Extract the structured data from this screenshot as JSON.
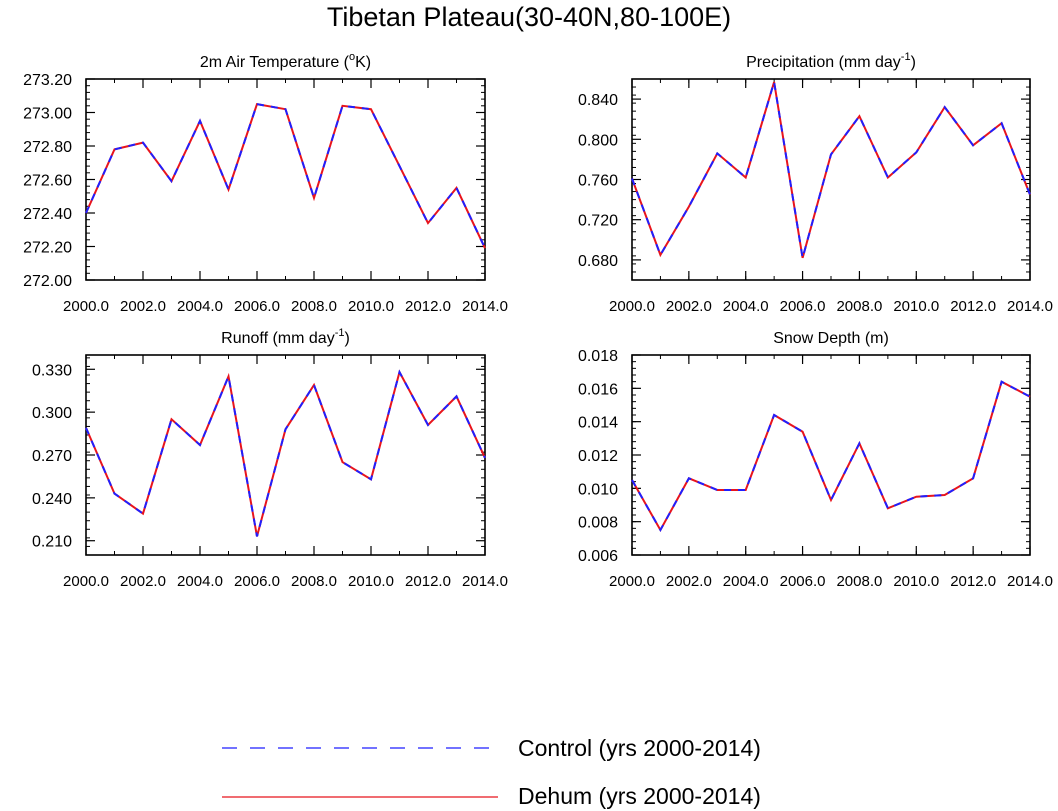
{
  "figure_title": "Tibetan Plateau(30-40N,80-100E)",
  "colors": {
    "control": "#1f1fff",
    "dehum": "#e8141c",
    "axis": "#000000"
  },
  "legend": {
    "entries": [
      {
        "label": "Control (yrs 2000-2014)",
        "style": "dashed",
        "color": "#1f1fff"
      },
      {
        "label": "Dehum (yrs 2000-2014)",
        "style": "solid",
        "color": "#e8141c"
      }
    ]
  },
  "chart_data": [
    {
      "type": "line",
      "title": "2m Air Temperature (",
      "title_sup": "o",
      "title_after": "K)",
      "x": [
        2000,
        2001,
        2002,
        2003,
        2004,
        2005,
        2006,
        2007,
        2008,
        2009,
        2010,
        2011,
        2012,
        2013,
        2014
      ],
      "xlim": [
        2000,
        2014
      ],
      "xticks": [
        2000,
        2002,
        2004,
        2006,
        2008,
        2010,
        2012,
        2014
      ],
      "xticklabels": [
        "2000.0",
        "2002.0",
        "2004.0",
        "2006.0",
        "2008.0",
        "2010.0",
        "2012.0",
        "2014.0"
      ],
      "ylim": [
        272.0,
        273.2
      ],
      "yticks": [
        272.0,
        272.2,
        272.4,
        272.6,
        272.8,
        273.0,
        273.2
      ],
      "yticklabels": [
        "272.00",
        "272.20",
        "272.40",
        "272.60",
        "272.80",
        "273.00",
        "273.20"
      ],
      "yminor": 0.04,
      "series": [
        {
          "name": "Control (yrs 2000-2014)",
          "values": [
            272.4,
            272.78,
            272.82,
            272.59,
            272.95,
            272.54,
            273.05,
            273.02,
            272.49,
            273.04,
            273.02,
            272.68,
            272.34,
            272.55,
            272.19
          ]
        },
        {
          "name": "Dehum (yrs 2000-2014)",
          "values": [
            272.4,
            272.78,
            272.82,
            272.59,
            272.95,
            272.54,
            273.05,
            273.02,
            272.49,
            273.04,
            273.02,
            272.68,
            272.34,
            272.55,
            272.19
          ]
        }
      ]
    },
    {
      "type": "line",
      "title": "Precipitation (mm day",
      "title_sup": "-1",
      "title_after": ")",
      "x": [
        2000,
        2001,
        2002,
        2003,
        2004,
        2005,
        2006,
        2007,
        2008,
        2009,
        2010,
        2011,
        2012,
        2013,
        2014
      ],
      "xlim": [
        2000,
        2014
      ],
      "xticks": [
        2000,
        2002,
        2004,
        2006,
        2008,
        2010,
        2012,
        2014
      ],
      "xticklabels": [
        "2000.0",
        "2002.0",
        "2004.0",
        "2006.0",
        "2008.0",
        "2010.0",
        "2012.0",
        "2014.0"
      ],
      "ylim": [
        0.66,
        0.86
      ],
      "yticks": [
        0.68,
        0.72,
        0.76,
        0.8,
        0.84
      ],
      "yticklabels": [
        "0.680",
        "0.720",
        "0.760",
        "0.800",
        "0.840"
      ],
      "yminor": 0.008,
      "series": [
        {
          "name": "Control (yrs 2000-2014)",
          "values": [
            0.761,
            0.685,
            0.733,
            0.786,
            0.762,
            0.857,
            0.682,
            0.785,
            0.823,
            0.762,
            0.787,
            0.832,
            0.794,
            0.816,
            0.745
          ]
        },
        {
          "name": "Dehum (yrs 2000-2014)",
          "values": [
            0.761,
            0.685,
            0.733,
            0.786,
            0.762,
            0.857,
            0.682,
            0.785,
            0.823,
            0.762,
            0.787,
            0.832,
            0.794,
            0.816,
            0.745
          ]
        }
      ]
    },
    {
      "type": "line",
      "title": "Runoff (mm day",
      "title_sup": "-1",
      "title_after": ")",
      "x": [
        2000,
        2001,
        2002,
        2003,
        2004,
        2005,
        2006,
        2007,
        2008,
        2009,
        2010,
        2011,
        2012,
        2013,
        2014
      ],
      "xlim": [
        2000,
        2014
      ],
      "xticks": [
        2000,
        2002,
        2004,
        2006,
        2008,
        2010,
        2012,
        2014
      ],
      "xticklabels": [
        "2000.0",
        "2002.0",
        "2004.0",
        "2006.0",
        "2008.0",
        "2010.0",
        "2012.0",
        "2014.0"
      ],
      "ylim": [
        0.2,
        0.34
      ],
      "yticks": [
        0.21,
        0.24,
        0.27,
        0.3,
        0.33
      ],
      "yticklabels": [
        "0.210",
        "0.240",
        "0.270",
        "0.300",
        "0.330"
      ],
      "yminor": 0.006,
      "series": [
        {
          "name": "Control (yrs 2000-2014)",
          "values": [
            0.289,
            0.243,
            0.229,
            0.295,
            0.277,
            0.325,
            0.213,
            0.288,
            0.319,
            0.265,
            0.253,
            0.328,
            0.291,
            0.311,
            0.268
          ]
        },
        {
          "name": "Dehum (yrs 2000-2014)",
          "values": [
            0.289,
            0.243,
            0.229,
            0.295,
            0.277,
            0.325,
            0.213,
            0.288,
            0.319,
            0.265,
            0.253,
            0.328,
            0.291,
            0.311,
            0.268
          ]
        }
      ]
    },
    {
      "type": "line",
      "title": "Snow Depth (m)",
      "title_sup": "",
      "title_after": "",
      "x": [
        2000,
        2001,
        2002,
        2003,
        2004,
        2005,
        2006,
        2007,
        2008,
        2009,
        2010,
        2011,
        2012,
        2013,
        2014
      ],
      "xlim": [
        2000,
        2014
      ],
      "xticks": [
        2000,
        2002,
        2004,
        2006,
        2008,
        2010,
        2012,
        2014
      ],
      "xticklabels": [
        "2000.0",
        "2002.0",
        "2004.0",
        "2006.0",
        "2008.0",
        "2010.0",
        "2012.0",
        "2014.0"
      ],
      "ylim": [
        0.006,
        0.018
      ],
      "yticks": [
        0.006,
        0.008,
        0.01,
        0.012,
        0.014,
        0.016,
        0.018
      ],
      "yticklabels": [
        "0.006",
        "0.008",
        "0.010",
        "0.012",
        "0.014",
        "0.016",
        "0.018"
      ],
      "yminor": 0.0004,
      "series": [
        {
          "name": "Control (yrs 2000-2014)",
          "values": [
            0.0105,
            0.0075,
            0.0106,
            0.0099,
            0.0099,
            0.0144,
            0.0134,
            0.0093,
            0.0127,
            0.0088,
            0.0095,
            0.0096,
            0.0106,
            0.0164,
            0.0155
          ]
        },
        {
          "name": "Dehum (yrs 2000-2014)",
          "values": [
            0.0105,
            0.0075,
            0.0106,
            0.0099,
            0.0099,
            0.0144,
            0.0134,
            0.0093,
            0.0127,
            0.0088,
            0.0095,
            0.0096,
            0.0106,
            0.0164,
            0.0155
          ]
        }
      ]
    }
  ]
}
